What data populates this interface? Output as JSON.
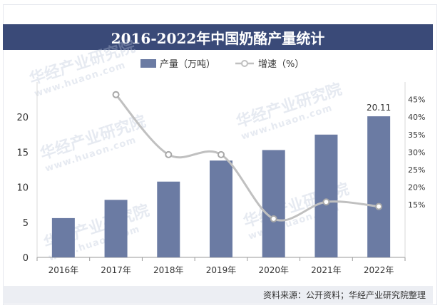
{
  "chart_data": {
    "type": "bar+line",
    "title": "2016-2022年中国奶酪产量统计",
    "categories": [
      "2016年",
      "2017年",
      "2018年",
      "2019年",
      "2020年",
      "2021年",
      "2022年"
    ],
    "series": [
      {
        "name": "产量（万吨）",
        "type": "bar",
        "axis": "left",
        "values": [
          5.6,
          8.2,
          10.8,
          13.8,
          15.3,
          17.5,
          20.11
        ],
        "color": "#6b7ba3"
      },
      {
        "name": "增速（%）",
        "type": "line",
        "axis": "right",
        "values": [
          null,
          46.4,
          29.3,
          29.3,
          11.0,
          15.8,
          14.5
        ],
        "color": "#c0c0c0"
      }
    ],
    "data_labels": [
      {
        "series": 0,
        "index": 6,
        "text": "20.11"
      }
    ],
    "left_axis": {
      "min": 0,
      "max": 25,
      "ticks": [
        0,
        5,
        10,
        15,
        20
      ]
    },
    "right_axis": {
      "min": 0,
      "max": 50,
      "ticks": [
        "15%",
        "20%",
        "25%",
        "30%",
        "35%",
        "40%",
        "45%"
      ]
    },
    "legend": {
      "position": "top"
    },
    "grid": false,
    "source": "资料来源：公开资料；华经产业研究院整理",
    "watermark": {
      "cn": "华经产业研究院",
      "en": "www.huaon.com"
    }
  }
}
